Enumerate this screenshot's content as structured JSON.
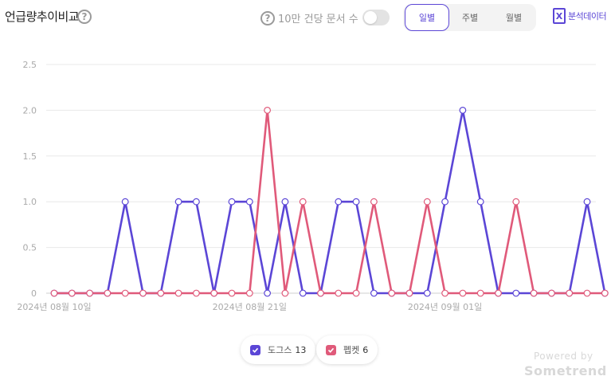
{
  "header": {
    "title": "언급량추이비교",
    "help_glyph": "?",
    "toggle_label": "10만 건당 문서 수",
    "toggle_on": false,
    "tabs": [
      {
        "label": "일별",
        "active": true
      },
      {
        "label": "주별",
        "active": false
      },
      {
        "label": "월별",
        "active": false
      }
    ],
    "analysis_label": "분석데이터",
    "analysis_icon": "excel-icon"
  },
  "chart_data": {
    "type": "line",
    "x_labels": [
      "2024년 08월 10일",
      "2024년 08월 21일",
      "2024년 09월 01일"
    ],
    "x_label_index": [
      0,
      11,
      22
    ],
    "ylim": [
      0,
      2.5
    ],
    "yticks": [
      "0",
      "0.5",
      "1.0",
      "1.5",
      "2.0",
      "2.5"
    ],
    "grid": true,
    "legend_position": "bottom-center",
    "series": [
      {
        "name": "도그스",
        "total": "13",
        "color": "#5b46d6",
        "values": [
          0,
          0,
          0,
          0,
          1,
          0,
          0,
          1,
          1,
          0,
          1,
          1,
          0,
          1,
          0,
          0,
          1,
          1,
          0,
          0,
          0,
          0,
          1,
          2,
          1,
          0,
          0,
          0,
          0,
          0,
          1,
          0
        ]
      },
      {
        "name": "펩켓",
        "total": "6",
        "color": "#e05a7a",
        "values": [
          0,
          0,
          0,
          0,
          0,
          0,
          0,
          0,
          0,
          0,
          0,
          0,
          2,
          0,
          1,
          0,
          0,
          0,
          1,
          0,
          0,
          1,
          0,
          0,
          0,
          0,
          1,
          0,
          0,
          0,
          0,
          0
        ]
      }
    ]
  },
  "footer": {
    "powered_by": "Powered by",
    "brand": "Sometrend"
  }
}
